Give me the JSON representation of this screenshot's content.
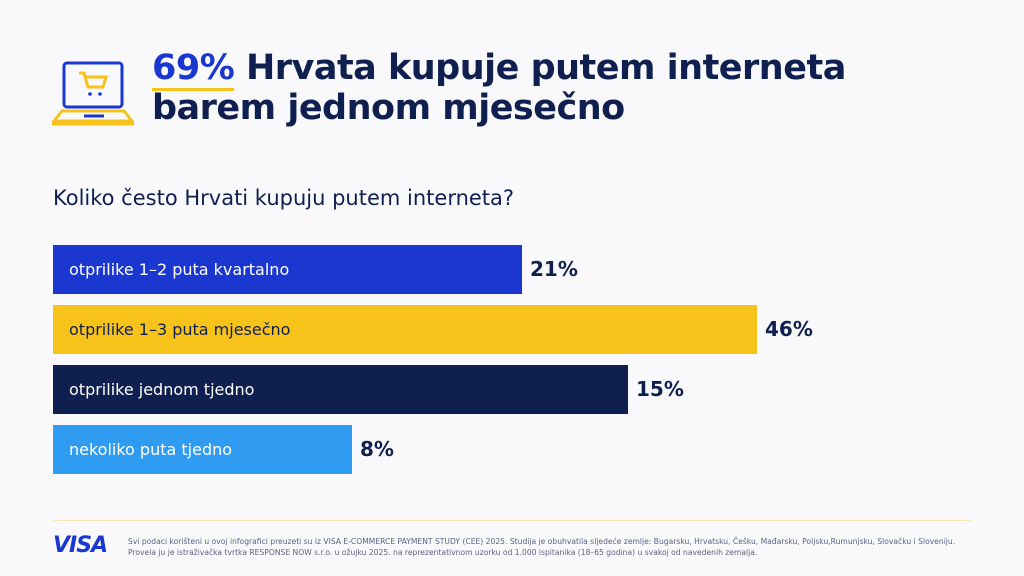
{
  "header": {
    "highlight": "69%",
    "title_line1": "Hrvata kupuje putem interneta",
    "title_line2": "barem jednom mjesečno",
    "icon": "laptop-shopping-cart-icon"
  },
  "chart_data": {
    "type": "bar",
    "orientation": "horizontal",
    "title": "Koliko često Hrvati kupuju putem interneta?",
    "categories": [
      "otprilike 1–2 puta kvartalno",
      "otprilike 1–3 puta mjesečno",
      "otprilike jednom tjedno",
      "nekoliko puta tjedno"
    ],
    "values": [
      21,
      46,
      15,
      8
    ],
    "value_labels": [
      "21%",
      "46%",
      "15%",
      "8%"
    ],
    "colors": [
      "#1a38d0",
      "#f7c21a",
      "#0f1f4f",
      "#2f9cf2"
    ],
    "label_colors": [
      "#ffffff",
      "#0f1f4f",
      "#ffffff",
      "#ffffff"
    ],
    "grid": false
  },
  "footer": {
    "logo": "VISA",
    "line1": "Svi podaci korišteni u ovoj infografici preuzeti su iz VISA E-COMMERCE PAYMENT STUDY (CEE) 2025. Studija je obuhvatila sljedeće zemlje: Bugarsku, Hrvatsku, Češku, Mađarsku, Poljsku,Rumunjsku, Slovačku i Sloveniju.",
    "line2": "Provela ju je istraživačka tvrtka RESPONSE NOW s.r.o. u ožujku 2025. na reprezentativnom uzorku od 1.000 ispitanika (18–65 godina) u svakoj od navedenih zemalja."
  }
}
